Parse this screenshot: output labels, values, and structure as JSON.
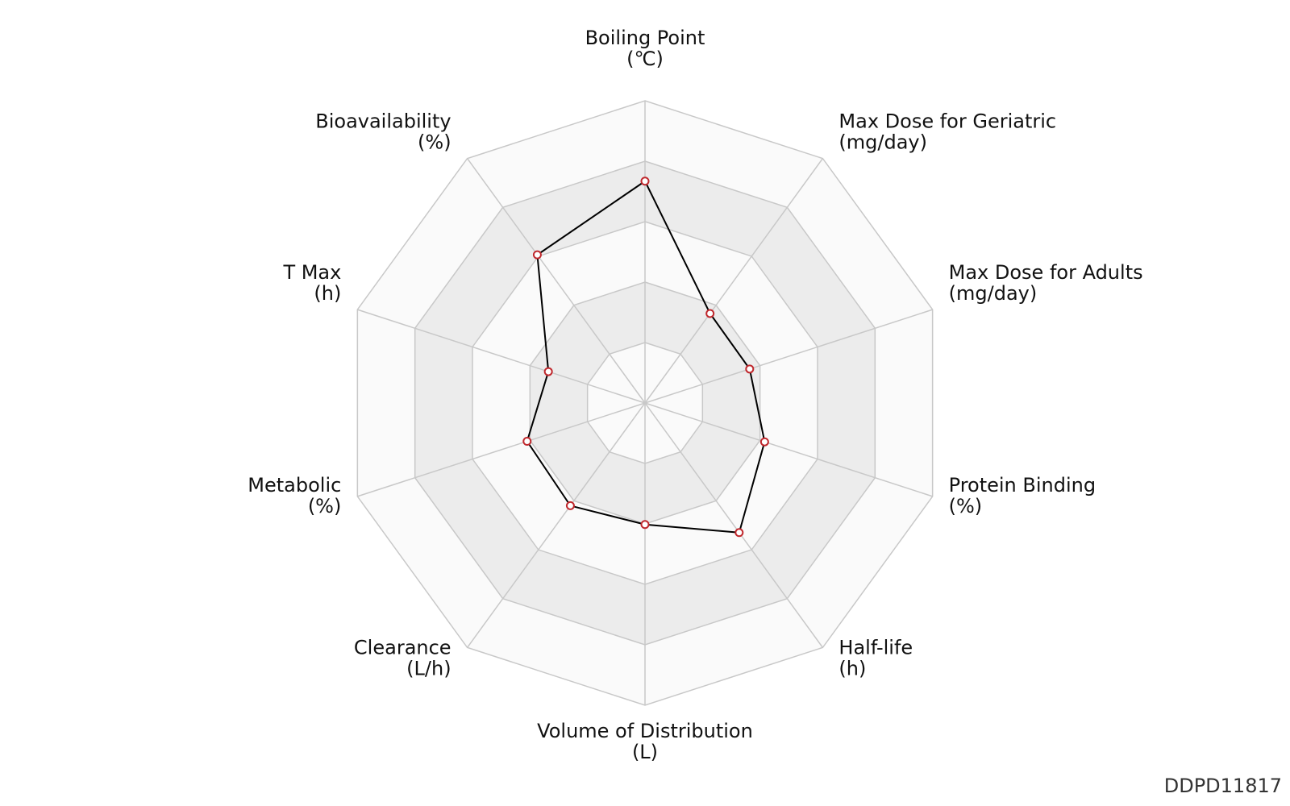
{
  "chart_data": {
    "type": "radar",
    "categories": [
      "Boiling Point",
      "Max Dose for Geriatric",
      "Max Dose for Adults",
      "Protein Binding",
      "Half-life",
      "Volume of Distribution",
      "Clearance",
      "Metabolic",
      "T Max",
      "Bioavailability"
    ],
    "units": [
      "(℃)",
      "(mg/day)",
      "(mg/day)",
      "(%)",
      "(h)",
      "(L)",
      "(L/h)",
      "(%)",
      "(h)",
      "(%)"
    ],
    "values": [
      3.67,
      1.83,
      1.82,
      2.08,
      2.65,
      2.01,
      2.1,
      2.05,
      1.68,
      3.03
    ],
    "rlim": [
      0,
      5
    ],
    "rticks": [
      1,
      2,
      3,
      4,
      5
    ],
    "color": "#000000",
    "marker_color": "#c0282d",
    "band_colors": [
      "#fafafa",
      "#ececec"
    ],
    "watermark": "DDPD11817"
  }
}
